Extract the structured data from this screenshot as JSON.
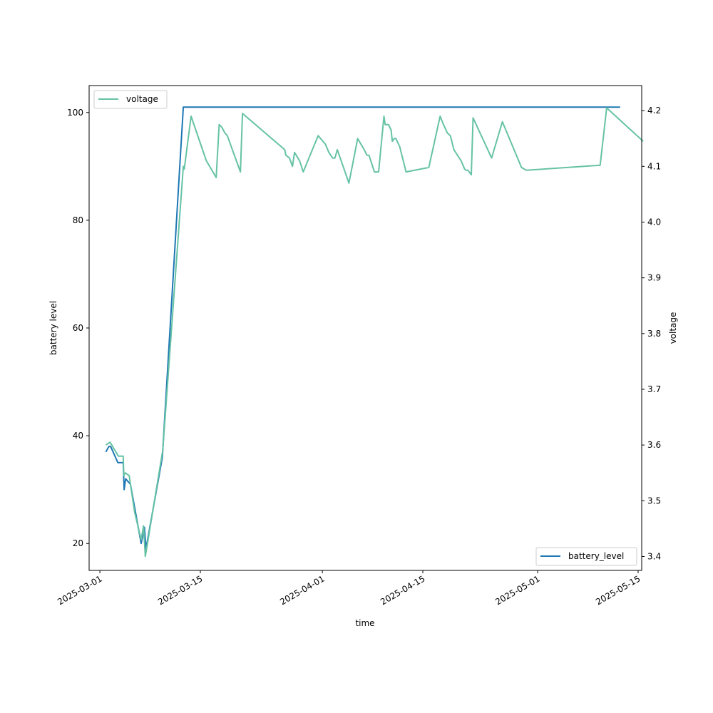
{
  "chart_data": {
    "type": "line",
    "title": "",
    "xlabel": "time",
    "ylabel_left": "battery level",
    "ylabel_right": "voltage",
    "xlim": [
      "2025-02-27T12:00",
      "2025-05-15T12:00"
    ],
    "ylim_left": [
      15,
      105
    ],
    "ylim_right": [
      3.375,
      4.245
    ],
    "x_ticks": [
      "2025-03-01",
      "2025-03-15",
      "2025-04-01",
      "2025-04-15",
      "2025-05-01",
      "2025-05-15"
    ],
    "y_ticks_left": [
      20,
      40,
      60,
      80,
      100
    ],
    "y_ticks_right": [
      3.4,
      3.5,
      3.6,
      3.7,
      3.8,
      3.9,
      4.0,
      4.1,
      4.2
    ],
    "grid": false,
    "colors": {
      "battery_level": "#1f77b4",
      "voltage": "#66c2a5"
    },
    "legend_left": {
      "entry": "voltage",
      "placement": "upper-left"
    },
    "legend_right": {
      "entry": "battery_level",
      "placement": "lower-right"
    },
    "series": [
      {
        "name": "battery_level",
        "axis": "left",
        "points": [
          [
            "2025-03-01T20:00",
            37
          ],
          [
            "2025-03-02T06:00",
            38
          ],
          [
            "2025-03-02T12:00",
            38
          ],
          [
            "2025-03-03T12:00",
            35
          ],
          [
            "2025-03-04T03:00",
            35
          ],
          [
            "2025-03-04T06:00",
            35
          ],
          [
            "2025-03-04T09:00",
            30
          ],
          [
            "2025-03-04T14:00",
            32
          ],
          [
            "2025-03-05T06:00",
            31
          ],
          [
            "2025-03-06T05:00",
            24
          ],
          [
            "2025-03-06T18:00",
            20
          ],
          [
            "2025-03-07T05:00",
            23
          ],
          [
            "2025-03-07T10:00",
            19
          ],
          [
            "2025-03-09T17:00",
            36
          ],
          [
            "2025-03-12T15:00",
            101
          ],
          [
            "2025-05-12T12:00",
            101
          ]
        ]
      },
      {
        "name": "voltage",
        "axis": "right",
        "points": [
          [
            "2025-03-01T20:00",
            3.6
          ],
          [
            "2025-03-02T10:00",
            3.605
          ],
          [
            "2025-03-03T14:00",
            3.58
          ],
          [
            "2025-03-04T06:00",
            3.58
          ],
          [
            "2025-03-04T08:00",
            3.545
          ],
          [
            "2025-03-04T13:00",
            3.55
          ],
          [
            "2025-03-05T02:00",
            3.545
          ],
          [
            "2025-03-05T20:00",
            3.48
          ],
          [
            "2025-03-06T18:00",
            3.43
          ],
          [
            "2025-03-07T02:00",
            3.455
          ],
          [
            "2025-03-07T08:00",
            3.4
          ],
          [
            "2025-03-09T18:00",
            3.59
          ],
          [
            "2025-03-12T15:00",
            4.1
          ],
          [
            "2025-03-12T18:00",
            4.095
          ],
          [
            "2025-03-13T17:00",
            4.19
          ],
          [
            "2025-03-15T20:00",
            4.11
          ],
          [
            "2025-03-17T05:00",
            4.08
          ],
          [
            "2025-03-17T15:00",
            4.175
          ],
          [
            "2025-03-18T00:00",
            4.17
          ],
          [
            "2025-03-18T10:00",
            4.16
          ],
          [
            "2025-03-18T18:00",
            4.155
          ],
          [
            "2025-03-20T14:00",
            4.09
          ],
          [
            "2025-03-20T21:00",
            4.195
          ],
          [
            "2025-03-26T18:00",
            4.13
          ],
          [
            "2025-03-26T22:00",
            4.12
          ],
          [
            "2025-03-27T10:00",
            4.115
          ],
          [
            "2025-03-27T20:00",
            4.1
          ],
          [
            "2025-03-28T03:00",
            4.125
          ],
          [
            "2025-03-28T20:00",
            4.11
          ],
          [
            "2025-03-29T08:00",
            4.09
          ],
          [
            "2025-03-31T10:00",
            4.155
          ],
          [
            "2025-04-01T10:00",
            4.14
          ],
          [
            "2025-04-01T22:00",
            4.125
          ],
          [
            "2025-04-02T10:00",
            4.115
          ],
          [
            "2025-04-02T18:00",
            4.115
          ],
          [
            "2025-04-03T02:00",
            4.13
          ],
          [
            "2025-04-04T17:00",
            4.07
          ],
          [
            "2025-04-05T22:00",
            4.15
          ],
          [
            "2025-04-06T20:00",
            4.13
          ],
          [
            "2025-04-07T05:00",
            4.12
          ],
          [
            "2025-04-07T12:00",
            4.12
          ],
          [
            "2025-04-08T06:00",
            4.09
          ],
          [
            "2025-04-08T20:00",
            4.09
          ],
          [
            "2025-04-09T14:00",
            4.19
          ],
          [
            "2025-04-09T18:00",
            4.175
          ],
          [
            "2025-04-10T05:00",
            4.175
          ],
          [
            "2025-04-10T14:00",
            4.165
          ],
          [
            "2025-04-10T18:00",
            4.145
          ],
          [
            "2025-04-11T00:00",
            4.15
          ],
          [
            "2025-04-11T06:00",
            4.15
          ],
          [
            "2025-04-11T19:00",
            4.135
          ],
          [
            "2025-04-12T16:00",
            4.09
          ],
          [
            "2025-04-15T20:00",
            4.098
          ],
          [
            "2025-04-17T10:00",
            4.19
          ],
          [
            "2025-04-17T21:00",
            4.175
          ],
          [
            "2025-04-18T10:00",
            4.16
          ],
          [
            "2025-04-18T20:00",
            4.155
          ],
          [
            "2025-04-19T08:00",
            4.13
          ],
          [
            "2025-04-20T08:00",
            4.11
          ],
          [
            "2025-04-20T20:00",
            4.095
          ],
          [
            "2025-04-21T00:00",
            4.093
          ],
          [
            "2025-04-21T07:00",
            4.093
          ],
          [
            "2025-04-21T18:00",
            4.085
          ],
          [
            "2025-04-22T00:00",
            4.187
          ],
          [
            "2025-04-24T14:00",
            4.115
          ],
          [
            "2025-04-26T02:00",
            4.18
          ],
          [
            "2025-04-28T18:00",
            4.098
          ],
          [
            "2025-04-29T10:00",
            4.093
          ],
          [
            "2025-05-09T17:00",
            4.102
          ],
          [
            "2025-05-10T15:00",
            4.205
          ],
          [
            "2025-05-15T17:00",
            4.145
          ]
        ]
      }
    ]
  }
}
